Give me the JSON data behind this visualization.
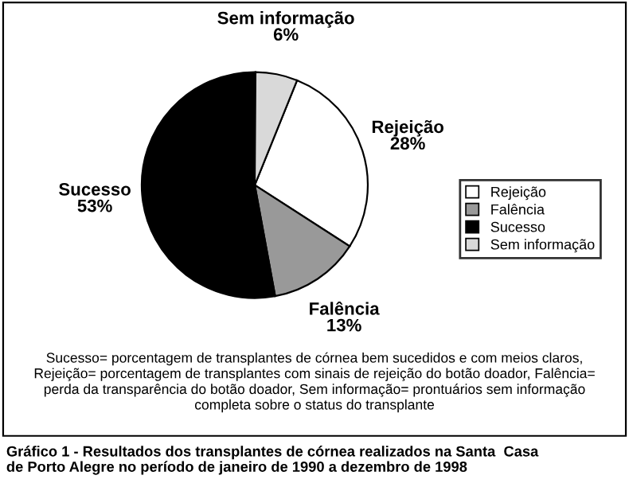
{
  "chart_data": {
    "type": "pie",
    "title": "Gráfico 1 - Resultados dos transplantes de córnea realizados na Santa  Casa\nde Porto Alegre no período de janeiro de 1990 a dezembro de 1998",
    "categories": [
      "Rejeição",
      "Falência",
      "Sucesso",
      "Sem informação"
    ],
    "values": [
      28,
      13,
      53,
      6
    ],
    "colors": [
      "#ffffff",
      "#999999",
      "#000000",
      "#d9d9d9"
    ],
    "legend": "right",
    "value_labels": [
      "28%",
      "13%",
      "53%",
      "6%"
    ],
    "annotations": [
      "Sucesso= porcentagem de transplantes de córnea bem sucedidos e com meios claros,\nRejeição= porcentagem de transplantes com sinais de rejeição do botão doador, Falência=\nperda da transparência do botão doador, Sem informação= prontuários sem informação\ncompleta sobre o status do transplante"
    ]
  }
}
